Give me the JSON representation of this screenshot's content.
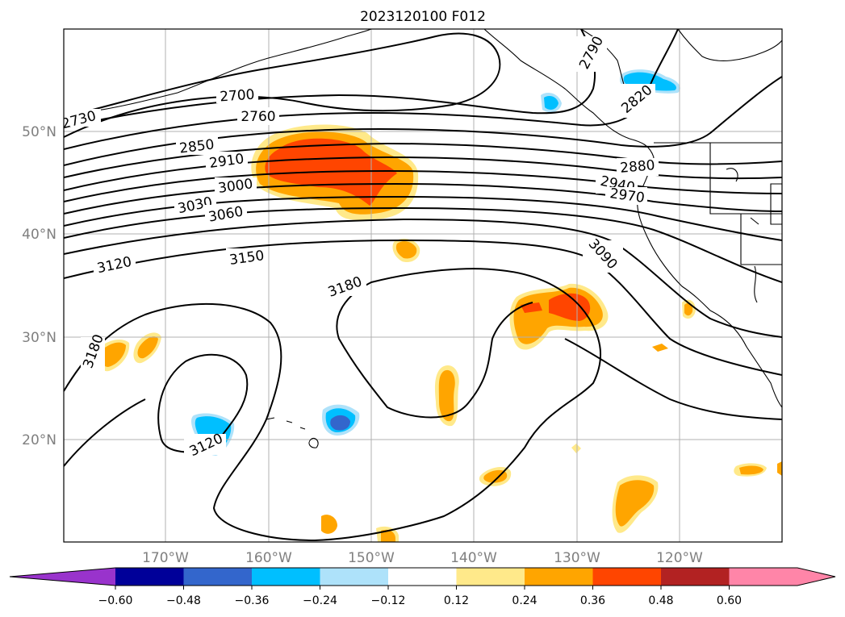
{
  "title": "2023120100 F012",
  "map": {
    "lon_labels": [
      "170°W",
      "160°W",
      "150°W",
      "140°W",
      "130°W",
      "120°W"
    ],
    "lat_labels": [
      "50°N",
      "40°N",
      "30°N",
      "20°N"
    ],
    "contour_labels": [
      "2730",
      "2700",
      "2760",
      "2850",
      "2910",
      "3000",
      "3030",
      "3060",
      "3120",
      "3150",
      "3180",
      "3180",
      "3120",
      "2790",
      "2820",
      "2880",
      "2940",
      "2970",
      "3090"
    ]
  },
  "colorbar": {
    "ticks": [
      "−0.60",
      "−0.48",
      "−0.36",
      "−0.24",
      "−0.12",
      "0.12",
      "0.24",
      "0.36",
      "0.48",
      "0.60"
    ],
    "colors": [
      "#9933cc",
      "#000099",
      "#3366cc",
      "#00bfff",
      "#aee2fa",
      "#ffffff",
      "#ffe98a",
      "#ffa500",
      "#ff4500",
      "#b22222",
      "#ff85a8",
      "#ff85a8"
    ]
  }
}
